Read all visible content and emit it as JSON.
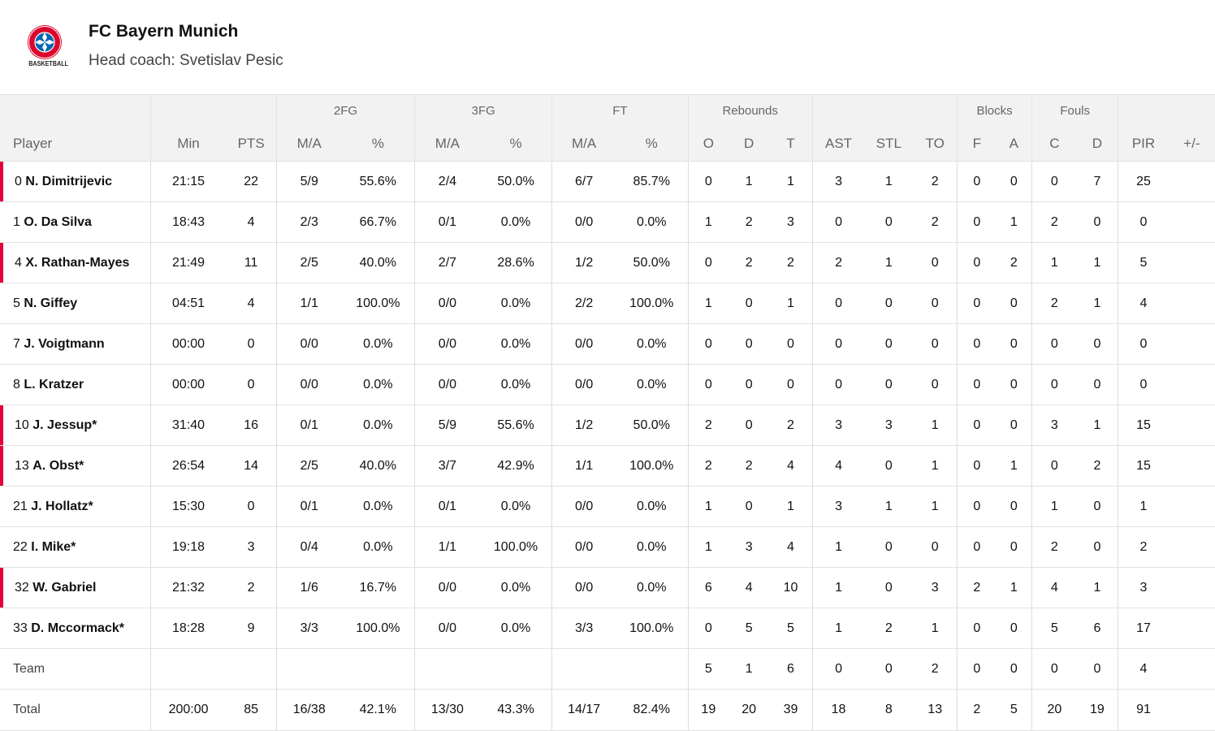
{
  "team": {
    "name": "FC Bayern Munich",
    "coach": "Head coach: Svetislav Pesic",
    "logo_text": "BASKETBALL",
    "brand_color": "#dc052d",
    "starter_marker_color": "#e4003a"
  },
  "groups": {
    "fg2": "2FG",
    "fg3": "3FG",
    "ft": "FT",
    "rebounds": "Rebounds",
    "blocks": "Blocks",
    "fouls": "Fouls"
  },
  "columns": [
    "Player",
    "Min",
    "PTS",
    "M/A",
    "%",
    "M/A",
    "%",
    "M/A",
    "%",
    "O",
    "D",
    "T",
    "AST",
    "STL",
    "TO",
    "F",
    "A",
    "C",
    "D",
    "PIR",
    "+/-"
  ],
  "players": [
    {
      "num": "0",
      "name": "N. Dimitrijevic",
      "starter": true,
      "stats": [
        "21:15",
        "22",
        "5/9",
        "55.6%",
        "2/4",
        "50.0%",
        "6/7",
        "85.7%",
        "0",
        "1",
        "1",
        "3",
        "1",
        "2",
        "0",
        "0",
        "0",
        "7",
        "25",
        ""
      ]
    },
    {
      "num": "1",
      "name": "O. Da Silva",
      "starter": false,
      "stats": [
        "18:43",
        "4",
        "2/3",
        "66.7%",
        "0/1",
        "0.0%",
        "0/0",
        "0.0%",
        "1",
        "2",
        "3",
        "0",
        "0",
        "2",
        "0",
        "1",
        "2",
        "0",
        "0",
        ""
      ]
    },
    {
      "num": "4",
      "name": "X. Rathan-Mayes",
      "starter": true,
      "stats": [
        "21:49",
        "11",
        "2/5",
        "40.0%",
        "2/7",
        "28.6%",
        "1/2",
        "50.0%",
        "0",
        "2",
        "2",
        "2",
        "1",
        "0",
        "0",
        "2",
        "1",
        "1",
        "5",
        ""
      ]
    },
    {
      "num": "5",
      "name": "N. Giffey",
      "starter": false,
      "stats": [
        "04:51",
        "4",
        "1/1",
        "100.0%",
        "0/0",
        "0.0%",
        "2/2",
        "100.0%",
        "1",
        "0",
        "1",
        "0",
        "0",
        "0",
        "0",
        "0",
        "2",
        "1",
        "4",
        ""
      ]
    },
    {
      "num": "7",
      "name": "J. Voigtmann",
      "starter": false,
      "stats": [
        "00:00",
        "0",
        "0/0",
        "0.0%",
        "0/0",
        "0.0%",
        "0/0",
        "0.0%",
        "0",
        "0",
        "0",
        "0",
        "0",
        "0",
        "0",
        "0",
        "0",
        "0",
        "0",
        ""
      ]
    },
    {
      "num": "8",
      "name": "L. Kratzer",
      "starter": false,
      "stats": [
        "00:00",
        "0",
        "0/0",
        "0.0%",
        "0/0",
        "0.0%",
        "0/0",
        "0.0%",
        "0",
        "0",
        "0",
        "0",
        "0",
        "0",
        "0",
        "0",
        "0",
        "0",
        "0",
        ""
      ]
    },
    {
      "num": "10",
      "name": "J. Jessup*",
      "starter": true,
      "stats": [
        "31:40",
        "16",
        "0/1",
        "0.0%",
        "5/9",
        "55.6%",
        "1/2",
        "50.0%",
        "2",
        "0",
        "2",
        "3",
        "3",
        "1",
        "0",
        "0",
        "3",
        "1",
        "15",
        ""
      ]
    },
    {
      "num": "13",
      "name": "A. Obst*",
      "starter": true,
      "stats": [
        "26:54",
        "14",
        "2/5",
        "40.0%",
        "3/7",
        "42.9%",
        "1/1",
        "100.0%",
        "2",
        "2",
        "4",
        "4",
        "0",
        "1",
        "0",
        "1",
        "0",
        "2",
        "15",
        ""
      ]
    },
    {
      "num": "21",
      "name": "J. Hollatz*",
      "starter": false,
      "stats": [
        "15:30",
        "0",
        "0/1",
        "0.0%",
        "0/1",
        "0.0%",
        "0/0",
        "0.0%",
        "1",
        "0",
        "1",
        "3",
        "1",
        "1",
        "0",
        "0",
        "1",
        "0",
        "1",
        ""
      ]
    },
    {
      "num": "22",
      "name": "I. Mike*",
      "starter": false,
      "stats": [
        "19:18",
        "3",
        "0/4",
        "0.0%",
        "1/1",
        "100.0%",
        "0/0",
        "0.0%",
        "1",
        "3",
        "4",
        "1",
        "0",
        "0",
        "0",
        "0",
        "2",
        "0",
        "2",
        ""
      ]
    },
    {
      "num": "32",
      "name": "W. Gabriel",
      "starter": true,
      "stats": [
        "21:32",
        "2",
        "1/6",
        "16.7%",
        "0/0",
        "0.0%",
        "0/0",
        "0.0%",
        "6",
        "4",
        "10",
        "1",
        "0",
        "3",
        "2",
        "1",
        "4",
        "1",
        "3",
        ""
      ]
    },
    {
      "num": "33",
      "name": "D. Mccormack*",
      "starter": false,
      "stats": [
        "18:28",
        "9",
        "3/3",
        "100.0%",
        "0/0",
        "0.0%",
        "3/3",
        "100.0%",
        "0",
        "5",
        "5",
        "1",
        "2",
        "1",
        "0",
        "0",
        "5",
        "6",
        "17",
        ""
      ]
    }
  ],
  "team_row": {
    "label": "Team",
    "stats": [
      "",
      "",
      "",
      "",
      "",
      "",
      "",
      "",
      "5",
      "1",
      "6",
      "0",
      "0",
      "2",
      "0",
      "0",
      "0",
      "0",
      "4",
      ""
    ]
  },
  "total_row": {
    "label": "Total",
    "stats": [
      "200:00",
      "85",
      "16/38",
      "42.1%",
      "13/30",
      "43.3%",
      "14/17",
      "82.4%",
      "19",
      "20",
      "39",
      "18",
      "8",
      "13",
      "2",
      "5",
      "20",
      "19",
      "91",
      ""
    ]
  }
}
